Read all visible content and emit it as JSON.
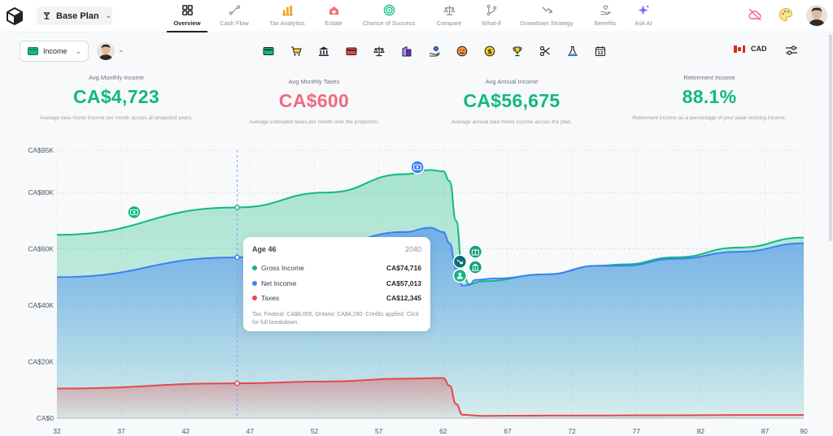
{
  "plan": {
    "name": "Base Plan"
  },
  "nav": {
    "tabs": [
      {
        "label": "Overview",
        "icon": "grid-icon",
        "active": true
      },
      {
        "label": "Cash Flow",
        "icon": "cash-flow-icon"
      },
      {
        "label": "Tax Analytics",
        "icon": "bar-chart-icon"
      },
      {
        "label": "Estate",
        "icon": "estate-icon"
      },
      {
        "label": "Chance of Success",
        "icon": "target-icon"
      },
      {
        "label": "Compare",
        "icon": "scale-icon"
      },
      {
        "label": "What-if",
        "icon": "branch-icon"
      },
      {
        "label": "Drawdown Strategy",
        "icon": "trend-down-icon"
      },
      {
        "label": "Benefits",
        "icon": "hand-heart-icon"
      },
      {
        "label": "Ask AI",
        "icon": "sparkle-icon"
      }
    ]
  },
  "toolbar": {
    "view_select": "Income",
    "currency": "CAD",
    "icons": [
      "cash-icon",
      "cart-icon",
      "bank-icon",
      "card-icon",
      "scale-icon",
      "building-icon",
      "hand-coin-icon",
      "smiley-icon",
      "coin-icon",
      "trophy-icon",
      "scissors-icon",
      "flask-icon",
      "calendar-icon"
    ]
  },
  "metrics": [
    {
      "label": "Avg Monthly Income",
      "value": "CA$4,723",
      "desc": "Average take-home income per month across all projected years.",
      "color": "#10b981"
    },
    {
      "label": "Avg Monthly Taxes",
      "value": "CA$600",
      "desc": "Average estimated taxes per month over the projection.",
      "color": "#f16a7e"
    },
    {
      "label": "Avg Annual Income",
      "value": "CA$56,675",
      "desc": "Average annual take-home income across the plan.",
      "color": "#10b981"
    },
    {
      "label": "Retirement Income",
      "value": "88.1%",
      "desc": "Retirement income as a percentage of your peak working income.",
      "color": "#10b981"
    }
  ],
  "chart_data": {
    "type": "area",
    "ylim": [
      0,
      95000
    ],
    "xlim": [
      32,
      90
    ],
    "y_ticks": [
      {
        "value": 0,
        "label": "CA$0"
      },
      {
        "value": 20000,
        "label": "CA$20K"
      },
      {
        "value": 40000,
        "label": "CA$40K"
      },
      {
        "value": 60000,
        "label": "CA$60K"
      },
      {
        "value": 80000,
        "label": "CA$80K"
      },
      {
        "value": 95000,
        "label": "CA$95K"
      }
    ],
    "x_ticks": [
      32,
      37,
      42,
      47,
      52,
      57,
      62,
      67,
      72,
      77,
      82,
      87,
      90
    ],
    "grid": true,
    "series": [
      {
        "name": "Gross Income",
        "color": "#10b981",
        "points": [
          [
            32,
            65000
          ],
          [
            46,
            74716
          ],
          [
            53,
            80000
          ],
          [
            59,
            86500
          ],
          [
            61,
            88000
          ],
          [
            62,
            87500
          ],
          [
            62.5,
            84000
          ],
          [
            63,
            70000
          ],
          [
            63.5,
            52000
          ],
          [
            64,
            47500
          ],
          [
            65,
            48500
          ],
          [
            70,
            51000
          ],
          [
            74,
            54000
          ],
          [
            76,
            54500
          ],
          [
            80,
            57000
          ],
          [
            85,
            60500
          ],
          [
            90,
            64000
          ]
        ]
      },
      {
        "name": "Net Income",
        "color": "#3b82f6",
        "points": [
          [
            32,
            50000
          ],
          [
            46,
            57013
          ],
          [
            53,
            61500
          ],
          [
            59,
            66000
          ],
          [
            61,
            67500
          ],
          [
            62,
            66000
          ],
          [
            62.5,
            62000
          ],
          [
            63,
            53000
          ],
          [
            63.5,
            47000
          ],
          [
            64,
            47200
          ],
          [
            64.5,
            49000
          ],
          [
            66,
            49500
          ],
          [
            70,
            51000
          ],
          [
            74,
            54000
          ],
          [
            76,
            54000
          ],
          [
            80,
            56500
          ],
          [
            85,
            59000
          ],
          [
            90,
            62000
          ]
        ]
      },
      {
        "name": "Taxes",
        "color": "#e5484d",
        "points": [
          [
            32,
            10500
          ],
          [
            46,
            12345
          ],
          [
            53,
            13000
          ],
          [
            59,
            14000
          ],
          [
            62,
            14200
          ],
          [
            62.5,
            11500
          ],
          [
            63,
            5000
          ],
          [
            63.5,
            1200
          ],
          [
            65,
            800
          ],
          [
            70,
            900
          ],
          [
            80,
            1000
          ],
          [
            85,
            1100
          ],
          [
            90,
            1100
          ]
        ]
      }
    ],
    "hover": {
      "age": 46
    },
    "markers": [
      {
        "x": 38,
        "y": 73000,
        "color": "#10b981",
        "icon": "cash-icon"
      },
      {
        "x": 60,
        "y": 89000,
        "color": "#3b82f6",
        "icon": "cash-icon"
      },
      {
        "x": 64.5,
        "y": 59000,
        "color": "#0f9f7a",
        "icon": "gift-icon"
      },
      {
        "x": 63.3,
        "y": 55500,
        "color": "#0b6e6e",
        "icon": "arrow-icon"
      },
      {
        "x": 64.5,
        "y": 53500,
        "color": "#0f9f7a",
        "icon": "bank-icon"
      },
      {
        "x": 63.3,
        "y": 50500,
        "color": "#10b981",
        "icon": "person-icon"
      }
    ]
  },
  "tooltip": {
    "title": "Age 46",
    "year": "2040",
    "rows": [
      {
        "label": "Gross Income",
        "value": "CA$74,716",
        "color": "#10b981"
      },
      {
        "label": "Net Income",
        "value": "CA$57,013",
        "color": "#3b82f6"
      },
      {
        "label": "Taxes",
        "value": "CA$12,345",
        "color": "#e5484d"
      }
    ],
    "note": "Tax: Federal: CA$8,055, Ontario: CA$4,290. Credits applied. Click for full breakdown."
  }
}
